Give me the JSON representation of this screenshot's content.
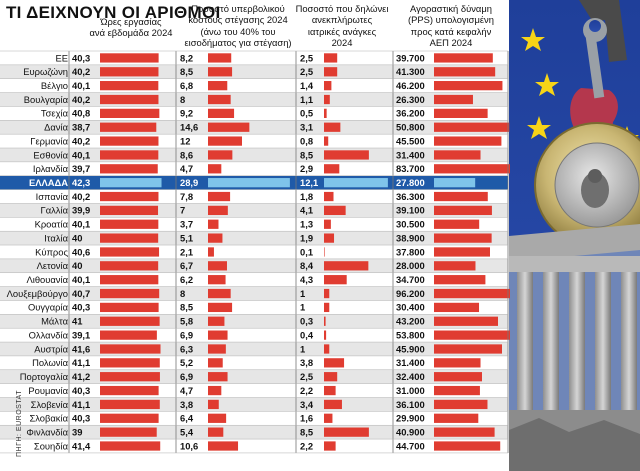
{
  "title": "ΤΙ ΔΕΙΧΝΟΥΝ ΟΙ ΑΡΙΘΜΟΙ",
  "source": "ΠΗΓΗ: EUROSTAT",
  "colors": {
    "bar": "#e03c31",
    "highlight_row": "#1f5aa8",
    "highlight_bar": "#7fc4ea",
    "row_even": "#ffffff",
    "row_odd": "#e6e6e6",
    "grid": "#b0b0b0"
  },
  "headers": [
    [
      "Ώρες εργασίας",
      "ανά εβδομάδα 2024"
    ],
    [
      "Ποσοστό υπερβολικού",
      "κόστους στέγασης 2024",
      "(άνω του 40% του",
      "εισοδήματος για στέγαση)"
    ],
    [
      "Ποσοστό που δηλώνει",
      "ανεκπλήρωτες",
      "ιατρικές ανάγκες",
      "2024"
    ],
    [
      "Αγοραστική δύναμη",
      "(PPS) υπολογισμένη",
      "προς κατά κεφαλήν",
      "ΑΕΠ 2024"
    ]
  ],
  "highlight": "ΕΛΛΑΔΑ",
  "chart_data": {
    "type": "table",
    "categories": [
      "ΕΕ",
      "Ευρωζώνη",
      "Βέλγιο",
      "Βουλγαρία",
      "Τσεχία",
      "Δανία",
      "Γερμανία",
      "Εσθονία",
      "Ιρλανδία",
      "ΕΛΛΑΔΑ",
      "Ισπανία",
      "Γαλλία",
      "Κροατία",
      "Ιταλία",
      "Κύπρος",
      "Λετονία",
      "Λιθουανία",
      "Λουξεμβούργο",
      "Ουγγαρία",
      "Μάλτα",
      "Ολλανδία",
      "Αυστρία",
      "Πολωνία",
      "Πορτογαλία",
      "Ρουμανία",
      "Σλοβενία",
      "Σλοβακία",
      "Φινλανδία",
      "Σουηδία"
    ],
    "series": [
      {
        "name": "Ώρες εργασίας ανά εβδομάδα 2024",
        "labels": [
          "40,3",
          "40,2",
          "40,1",
          "40,2",
          "40,8",
          "38,7",
          "40,2",
          "40,1",
          "39,7",
          "42,3",
          "40,2",
          "39,9",
          "40,1",
          "40",
          "40,6",
          "40",
          "40,1",
          "40,7",
          "40,3",
          "41",
          "39,1",
          "41,6",
          "41,1",
          "41,2",
          "40,3",
          "41,1",
          "40,3",
          "39",
          "41,4"
        ],
        "values": [
          40.3,
          40.2,
          40.1,
          40.2,
          40.8,
          38.7,
          40.2,
          40.1,
          39.7,
          42.3,
          40.2,
          39.9,
          40.1,
          40,
          40.6,
          40,
          40.1,
          40.7,
          40.3,
          41,
          39.1,
          41.6,
          41.1,
          41.2,
          40.3,
          41.1,
          40.3,
          39,
          41.4
        ]
      },
      {
        "name": "Ποσοστό υπερβολικού κόστους στέγασης 2024 (άνω του 40% του εισοδήματος για στέγαση)",
        "labels": [
          "8,2",
          "8,5",
          "6,8",
          "8",
          "9,2",
          "14,6",
          "12",
          "8,6",
          "4,7",
          "28,9",
          "7,8",
          "7",
          "3,7",
          "5,1",
          "2,1",
          "6,7",
          "6,2",
          "8",
          "8,5",
          "5,8",
          "6,9",
          "6,3",
          "5,2",
          "6,9",
          "4,7",
          "3,8",
          "6,4",
          "5,4",
          "10,6"
        ],
        "values": [
          8.2,
          8.5,
          6.8,
          8,
          9.2,
          14.6,
          12,
          8.6,
          4.7,
          28.9,
          7.8,
          7,
          3.7,
          5.1,
          2.1,
          6.7,
          6.2,
          8,
          8.5,
          5.8,
          6.9,
          6.3,
          5.2,
          6.9,
          4.7,
          3.8,
          6.4,
          5.4,
          10.6
        ]
      },
      {
        "name": "Ποσοστό που δηλώνει ανεκπλήρωτες ιατρικές ανάγκες 2024",
        "labels": [
          "2,5",
          "2,5",
          "1,4",
          "1,1",
          "0,5",
          "3,1",
          "0,8",
          "8,5",
          "2,9",
          "12,1",
          "1,8",
          "4,1",
          "1,3",
          "1,9",
          "0,1",
          "8,4",
          "4,3",
          "1",
          "1",
          "0,3",
          "0,4",
          "1",
          "3,8",
          "2,5",
          "2,2",
          "3,4",
          "1,6",
          "8,5",
          "2,2"
        ],
        "values": [
          2.5,
          2.5,
          1.4,
          1.1,
          0.5,
          3.1,
          0.8,
          8.5,
          2.9,
          12.1,
          1.8,
          4.1,
          1.3,
          1.9,
          0.1,
          8.4,
          4.3,
          1,
          1,
          0.3,
          0.4,
          1,
          3.8,
          2.5,
          2.2,
          3.4,
          1.6,
          8.5,
          2.2
        ]
      },
      {
        "name": "Αγοραστική δύναμη (PPS) υπολογισμένη προς κατά κεφαλήν ΑΕΠ 2024",
        "labels": [
          "39.700",
          "41.300",
          "46.200",
          "26.300",
          "36.200",
          "50.800",
          "45.500",
          "31.400",
          "83.700",
          "27.800",
          "36.300",
          "39.100",
          "30.500",
          "38.900",
          "37.800",
          "28.000",
          "34.700",
          "96.200",
          "30.400",
          "43.200",
          "53.800",
          "45.900",
          "31.400",
          "32.400",
          "31.000",
          "36.100",
          "29.900",
          "40.900",
          "44.700"
        ],
        "values": [
          39700,
          41300,
          46200,
          26300,
          36200,
          50800,
          45500,
          31400,
          83700,
          27800,
          36300,
          39100,
          30500,
          38900,
          37800,
          28000,
          34700,
          96200,
          30400,
          43200,
          53800,
          45900,
          31400,
          32400,
          31000,
          36100,
          29900,
          40900,
          44700
        ]
      }
    ]
  }
}
